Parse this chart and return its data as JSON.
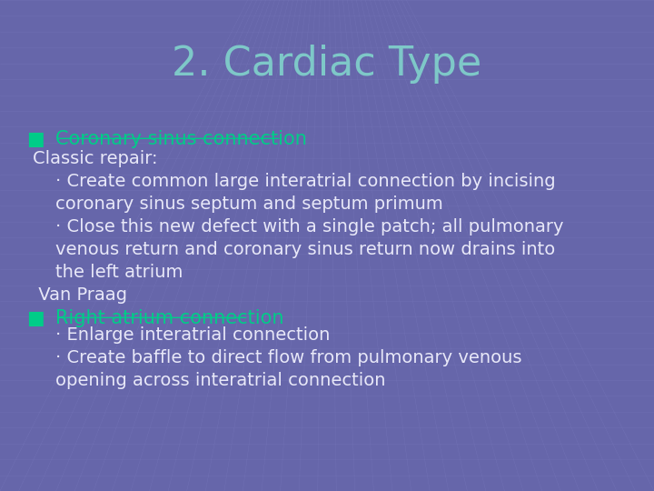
{
  "title": "2. Cardiac Type",
  "title_color": "#7EC8C8",
  "title_fontsize": 32,
  "bg_color": "#6666AA",
  "grid_color": "#7777BB",
  "bullet_color": "#00CC88",
  "text_color": "#E8E8F8",
  "bullet1_label": "Coronary sinus connection",
  "bullet1_body": [
    "Classic repair:",
    "    · Create common large interatrial connection by incising",
    "    coronary sinus septum and septum primum",
    "    · Close this new defect with a single patch; all pulmonary",
    "    venous return and coronary sinus return now drains into",
    "    the left atrium",
    " Van Praag"
  ],
  "bullet2_label": "Right atrium connection",
  "bullet2_body": [
    "    · Enlarge interatrial connection",
    "    · Create baffle to direct flow from pulmonary venous",
    "    opening across interatrial connection"
  ],
  "body_fontsize": 14,
  "bullet_fontsize": 15
}
